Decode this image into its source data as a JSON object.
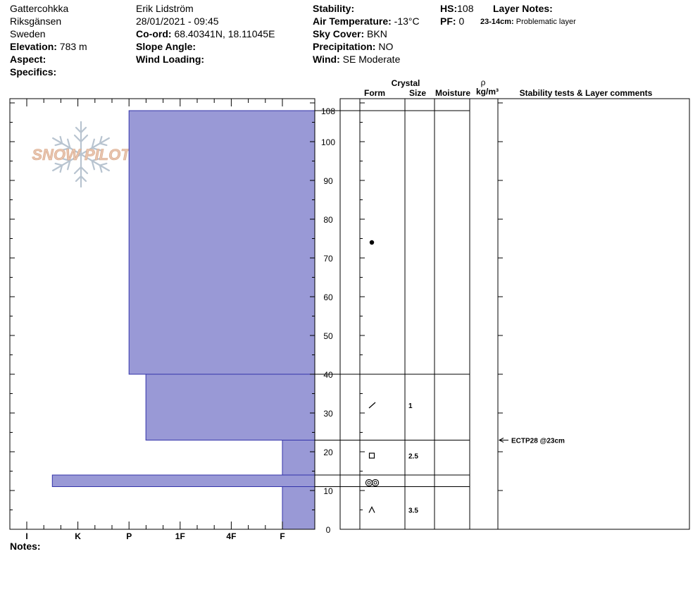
{
  "header": {
    "site": {
      "location": "Gattercohkka",
      "area": "Riksgänsen",
      "country": "Sweden",
      "elevation_label": "Elevation:",
      "elevation_value": "783 m",
      "aspect_label": "Aspect:",
      "aspect_value": "",
      "specifics_label": "Specifics:",
      "specifics_value": ""
    },
    "observer": {
      "name": "Erik Lidström",
      "datetime": "28/01/2021 - 09:45",
      "coord_label": "Co-ord:",
      "coord_value": "68.40341N, 18.11045E",
      "slope_label": "Slope Angle:",
      "slope_value": "",
      "wind_loading_label": "Wind Loading:",
      "wind_loading_value": ""
    },
    "conditions": {
      "stability_label": "Stability:",
      "stability_value": "",
      "air_temp_label": "Air Temperature:",
      "air_temp_value": "-13°C",
      "sky_label": "Sky Cover:",
      "sky_value": "BKN",
      "precip_label": "Precipitation:",
      "precip_value": "NO",
      "wind_label": "Wind:",
      "wind_value": "SE Moderate"
    },
    "profile": {
      "hs_label": "HS:",
      "hs_value": "108",
      "pf_label": "PF:",
      "pf_value": "0",
      "layer_notes_label": "Layer Notes:",
      "layer_note_depth": "23-14cm:",
      "layer_note_text": "Problematic layer"
    },
    "notes_label": "Notes:"
  },
  "logo": {
    "text": "SNOW PILOT"
  },
  "colors": {
    "hardness_fill": "#9999d6",
    "hardness_stroke": "#3333aa",
    "logo_text": "#e8c4ae",
    "logo_flake": "#b8c4d0"
  },
  "columns": {
    "crystal": "Crystal",
    "form": "Form",
    "size": "Size",
    "moisture": "Moisture",
    "rho": "ρ",
    "density_unit": "kg/m³",
    "stability": "Stability tests & Layer comments"
  },
  "chart_data": {
    "type": "snow-profile",
    "y_axis": {
      "label": "",
      "range": [
        0,
        108
      ],
      "ticks": [
        0,
        10,
        20,
        30,
        40,
        50,
        60,
        70,
        80,
        90,
        100,
        108
      ]
    },
    "x_axis": {
      "label": "",
      "ticks": [
        "I",
        "K",
        "P",
        "1F",
        "4F",
        "F"
      ],
      "direction": "right-is-soft"
    },
    "layers": [
      {
        "top": 108,
        "bottom": 40,
        "hardness": "P",
        "hardness_index": 2,
        "form": "rounding",
        "form_icon": "filled-dot-icon",
        "form_height": 74,
        "size": ""
      },
      {
        "top": 40,
        "bottom": 23,
        "hardness": "P-1F",
        "hardness_index": 2.33,
        "form": "decomposing",
        "form_icon": "slash-icon",
        "form_height": 32,
        "size": "1"
      },
      {
        "top": 23,
        "bottom": 14,
        "hardness": "F",
        "hardness_index": 5,
        "form": "faceted",
        "form_icon": "square-icon",
        "form_height": 19,
        "size": "2.5"
      },
      {
        "top": 14,
        "bottom": 11,
        "hardness": "I-K",
        "hardness_index": 0.5,
        "form": "melt-freeze",
        "form_icon": "double-ring-icon",
        "form_height": 12,
        "size": ""
      },
      {
        "top": 11,
        "bottom": 0,
        "hardness": "F",
        "hardness_index": 5,
        "form": "depth hoar",
        "form_icon": "caret-icon",
        "form_height": 5,
        "size": "3.5"
      }
    ],
    "tests": [
      {
        "label": "ECTP28 @23cm",
        "depth": 23
      }
    ]
  }
}
